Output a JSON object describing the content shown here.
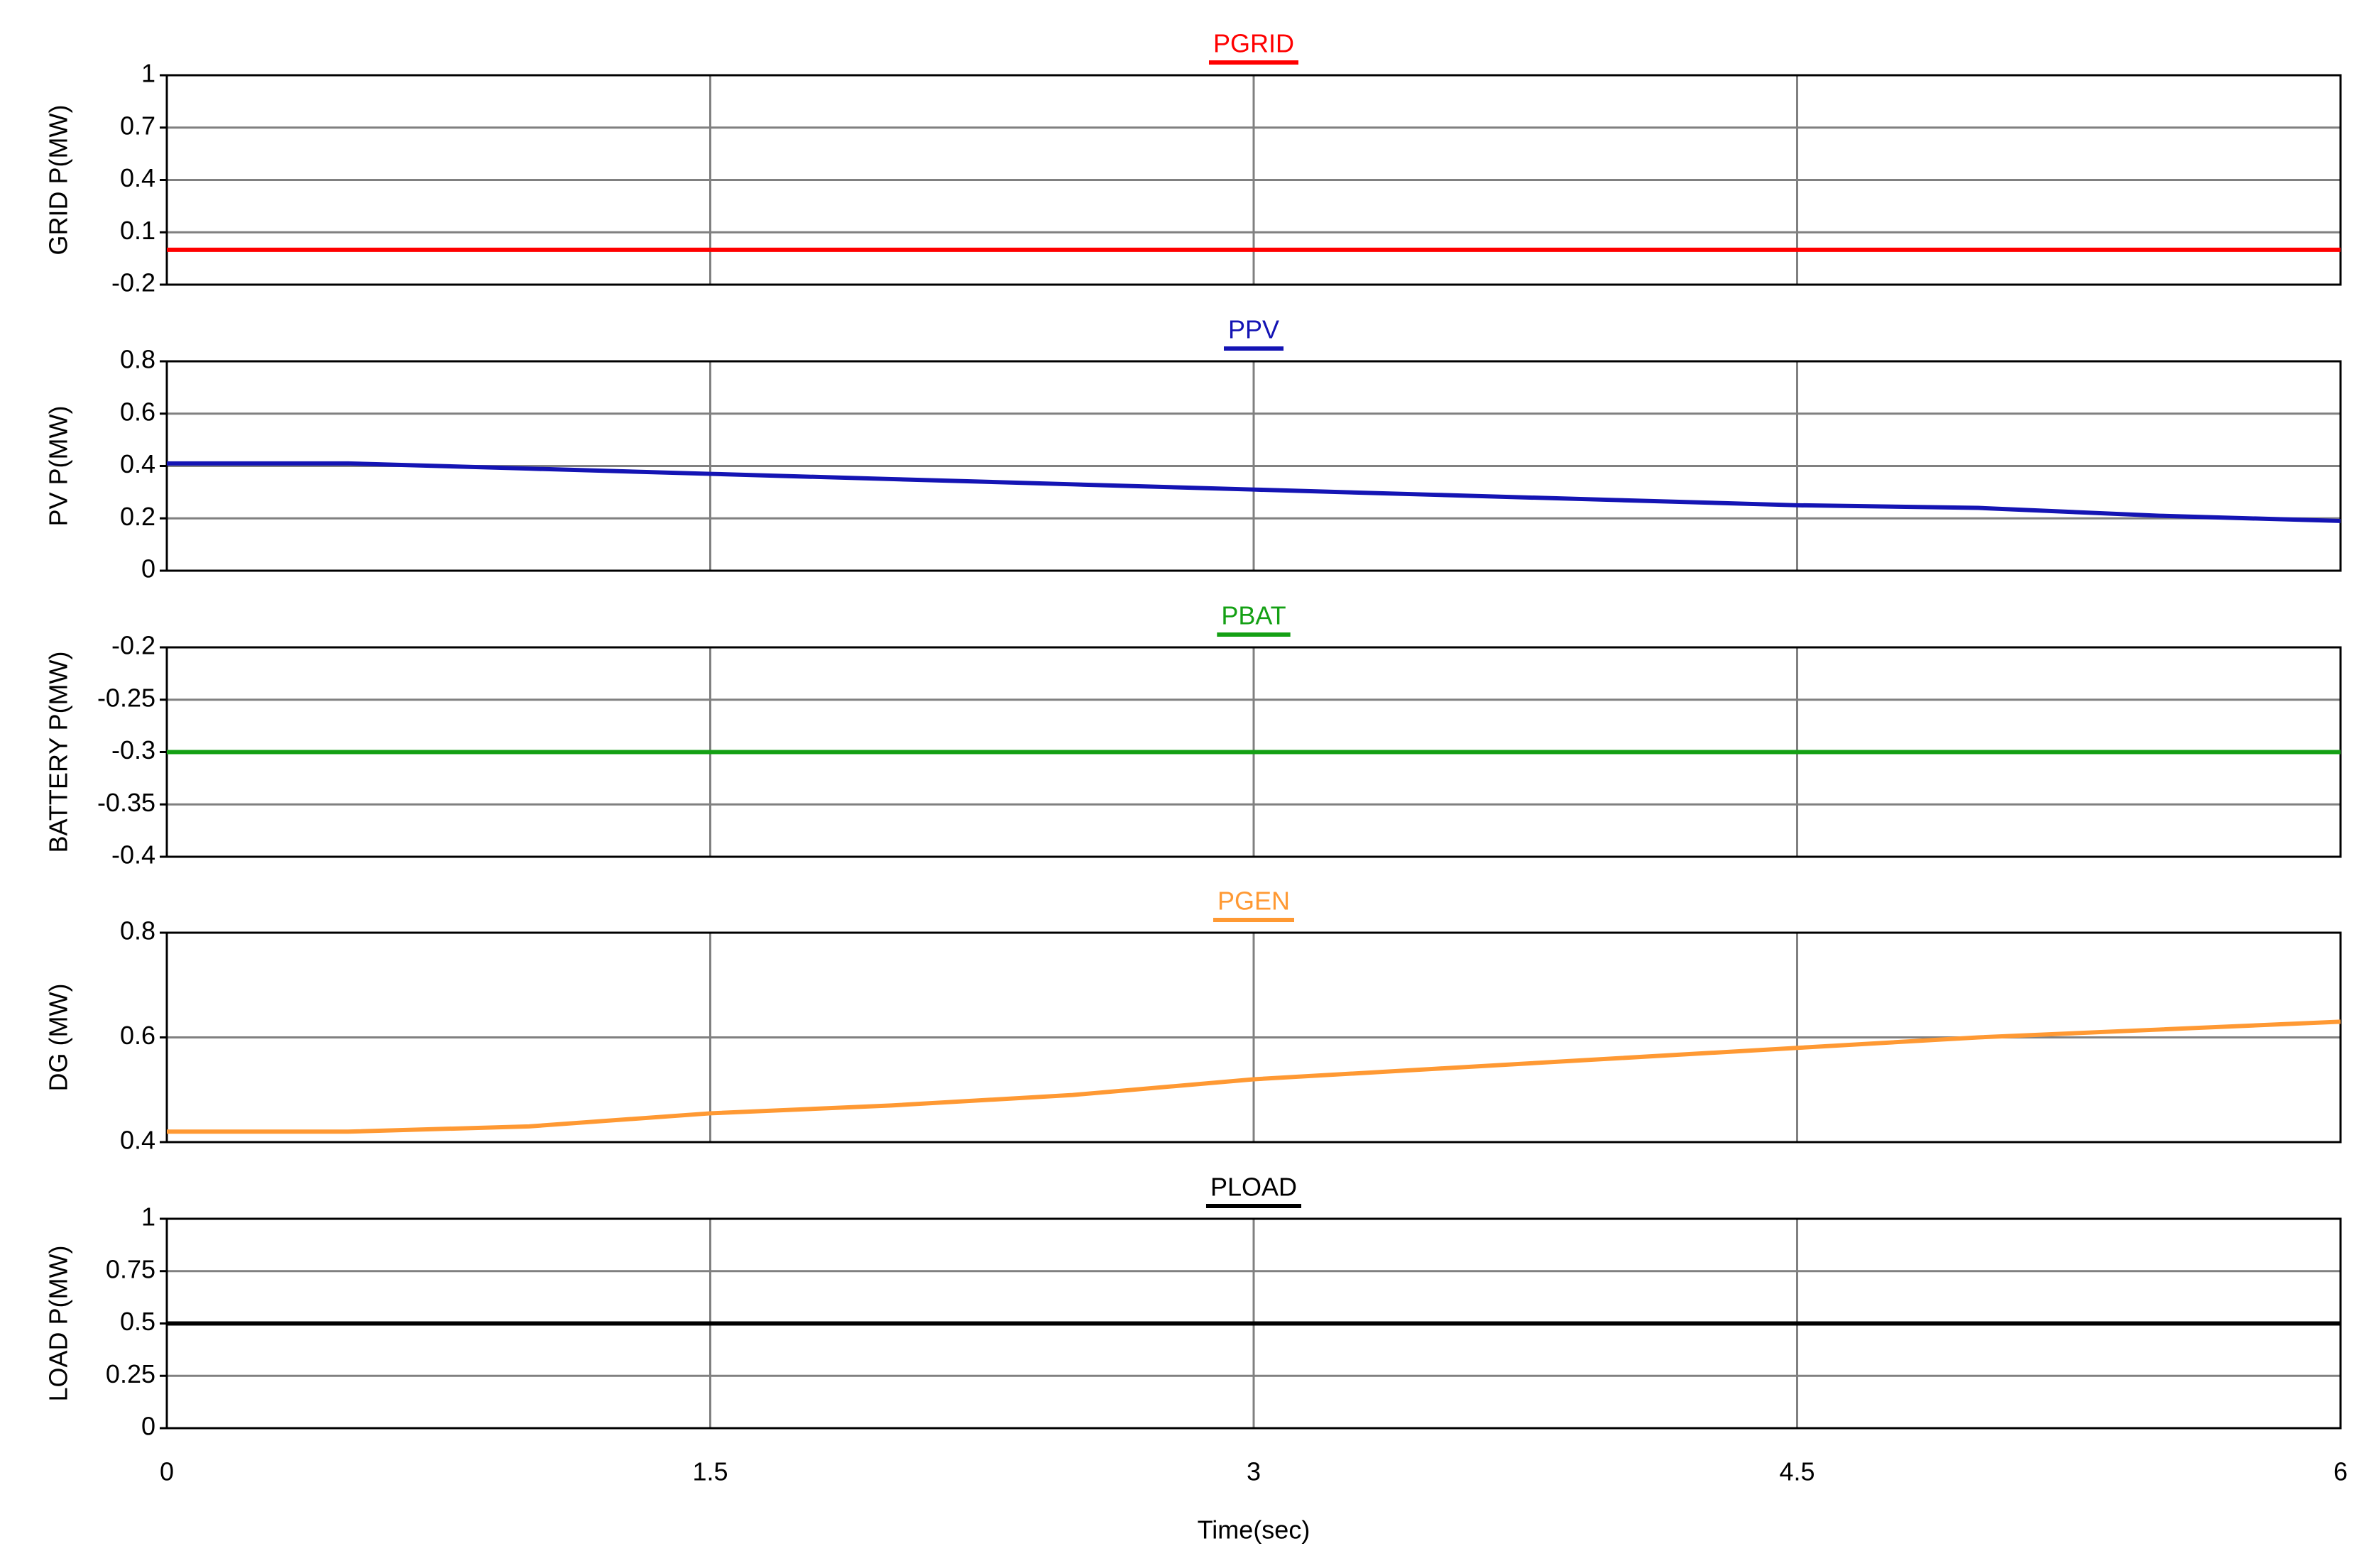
{
  "chart_data": [
    {
      "type": "line",
      "ylabel": "GRID P(MW)",
      "x": [
        0,
        6
      ],
      "xlim": [
        0,
        6
      ],
      "xticks": [
        0,
        1.5,
        3,
        4.5,
        6
      ],
      "ylim": [
        -0.2,
        1
      ],
      "yticks": [
        -0.2,
        0.1,
        0.4,
        0.7,
        1
      ],
      "grid": true,
      "series": [
        {
          "name": "PGRID",
          "color": "#ff0000",
          "values": [
            0,
            0
          ]
        }
      ]
    },
    {
      "type": "line",
      "ylabel": "PV P(MW)",
      "x": [
        0,
        0.5,
        1,
        1.5,
        2,
        2.5,
        3,
        3.5,
        4,
        4.5,
        5,
        5.5,
        6
      ],
      "xlim": [
        0,
        6
      ],
      "xticks": [
        0,
        1.5,
        3,
        4.5,
        6
      ],
      "ylim": [
        0,
        0.8
      ],
      "yticks": [
        0,
        0.2,
        0.4,
        0.6,
        0.8
      ],
      "grid": true,
      "series": [
        {
          "name": "PPV",
          "color": "#1414b4",
          "values": [
            0.41,
            0.41,
            0.39,
            0.37,
            0.35,
            0.33,
            0.31,
            0.29,
            0.27,
            0.25,
            0.24,
            0.21,
            0.19
          ]
        }
      ]
    },
    {
      "type": "line",
      "ylabel": "BATTERY P(MW)",
      "x": [
        0,
        6
      ],
      "xlim": [
        0,
        6
      ],
      "xticks": [
        0,
        1.5,
        3,
        4.5,
        6
      ],
      "ylim": [
        -0.4,
        -0.2
      ],
      "yticks": [
        -0.4,
        -0.35,
        -0.3,
        -0.25,
        -0.2
      ],
      "grid": true,
      "series": [
        {
          "name": "PBAT",
          "color": "#14a014",
          "values": [
            -0.3,
            -0.3
          ]
        }
      ]
    },
    {
      "type": "line",
      "ylabel": "DG (MW)",
      "x": [
        0,
        0.5,
        1,
        1.5,
        2,
        2.5,
        3,
        3.5,
        4,
        4.5,
        5,
        5.5,
        6
      ],
      "xlim": [
        0,
        6
      ],
      "xticks": [
        0,
        1.5,
        3,
        4.5,
        6
      ],
      "ylim": [
        0.4,
        0.8
      ],
      "yticks": [
        0.4,
        0.6,
        0.8
      ],
      "grid": true,
      "series": [
        {
          "name": "PGEN",
          "color": "#ff9933",
          "values": [
            0.42,
            0.42,
            0.43,
            0.455,
            0.47,
            0.49,
            0.52,
            0.54,
            0.56,
            0.58,
            0.6,
            0.615,
            0.63
          ]
        }
      ]
    },
    {
      "type": "line",
      "ylabel": "LOAD P(MW)",
      "xlabel": "Time(sec)",
      "x": [
        0,
        6
      ],
      "xlim": [
        0,
        6
      ],
      "xticks": [
        0,
        1.5,
        3,
        4.5,
        6
      ],
      "ylim": [
        0,
        1
      ],
      "yticks": [
        0,
        0.25,
        0.5,
        0.75,
        1
      ],
      "grid": true,
      "series": [
        {
          "name": "PLOAD",
          "color": "#000000",
          "values": [
            0.5,
            0.5
          ]
        }
      ]
    }
  ]
}
